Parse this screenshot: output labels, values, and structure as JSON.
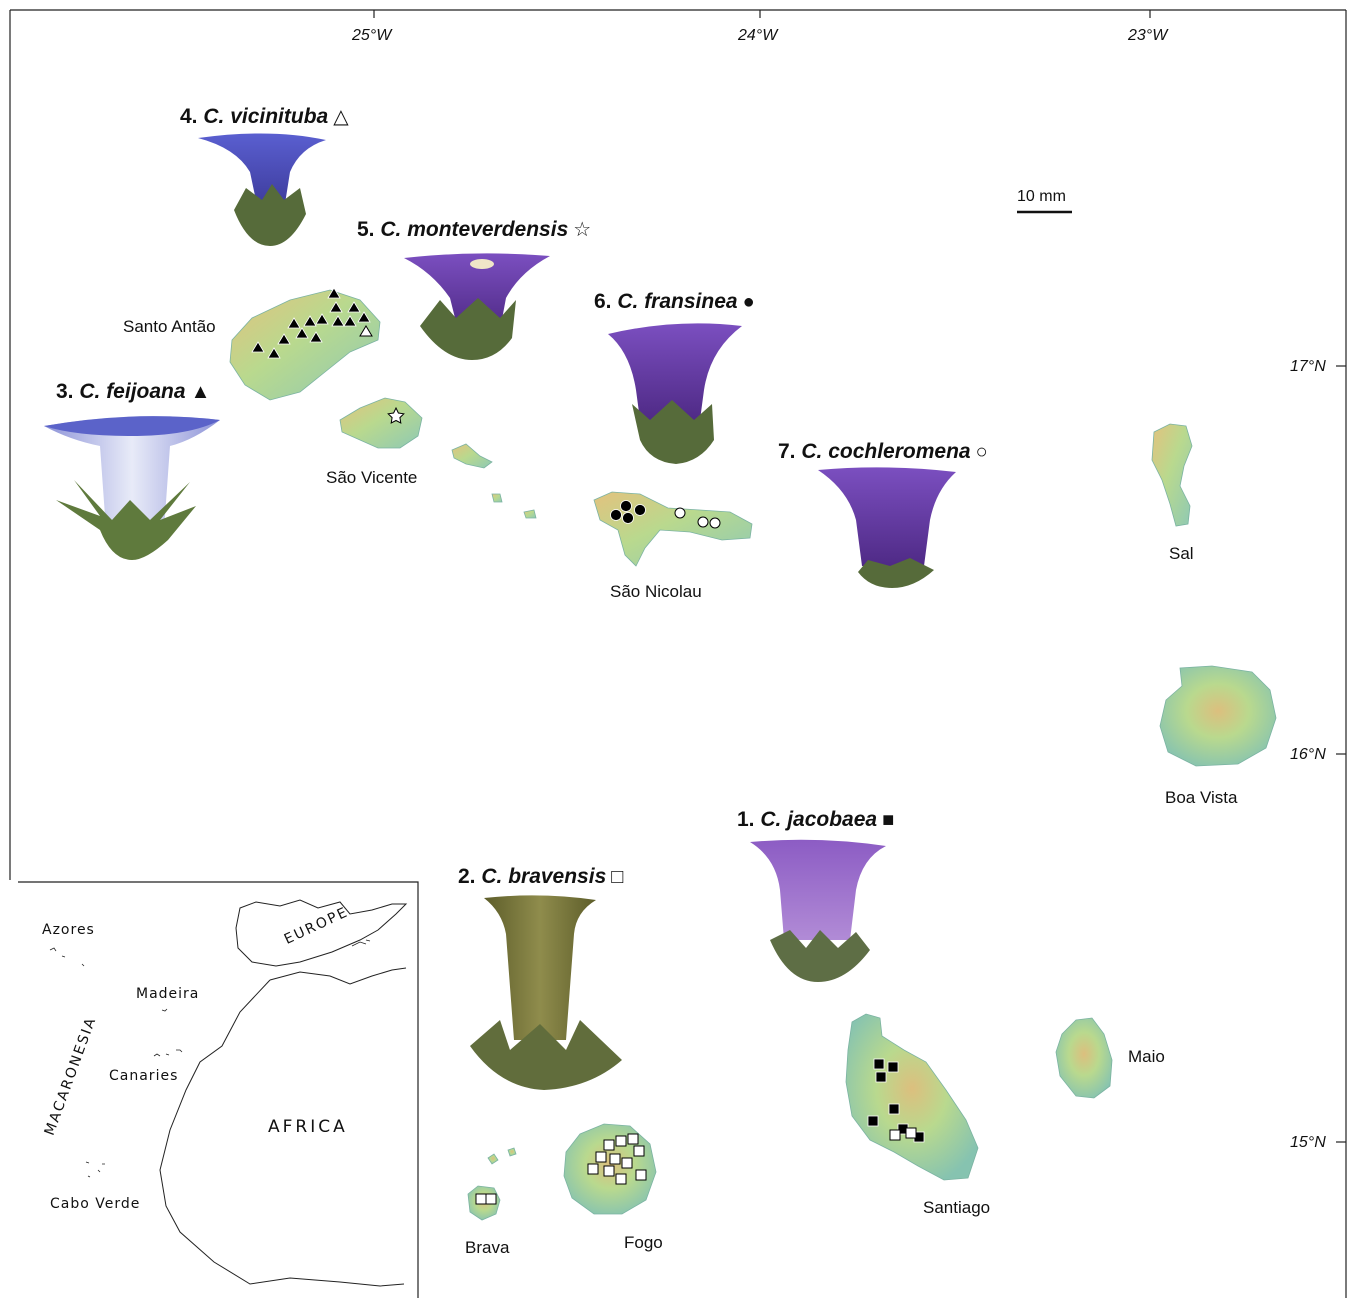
{
  "longitudes": [
    "25°W",
    "24°W",
    "23°W"
  ],
  "latitudes": [
    "17°N",
    "16°N",
    "15°N"
  ],
  "scale_bar": "10 mm",
  "islands": {
    "santo_antao": "Santo Antão",
    "sao_vicente": "São Vicente",
    "sao_nicolau": "São Nicolau",
    "sal": "Sal",
    "boa_vista": "Boa Vista",
    "maio": "Maio",
    "santiago": "Santiago",
    "fogo": "Fogo",
    "brava": "Brava"
  },
  "species": [
    {
      "num": "1.",
      "name": "C. jacobaea",
      "symbol": "■"
    },
    {
      "num": "2.",
      "name": "C. bravensis",
      "symbol": "□"
    },
    {
      "num": "3.",
      "name": "C. feijoana",
      "symbol": "▲"
    },
    {
      "num": "4.",
      "name": "C. vicinituba",
      "symbol": "△"
    },
    {
      "num": "5.",
      "name": "C. monteverdensis",
      "symbol": "☆"
    },
    {
      "num": "6.",
      "name": "C. fransinea",
      "symbol": "●"
    },
    {
      "num": "7.",
      "name": "C. cochleromena",
      "symbol": "○"
    }
  ],
  "inset": {
    "azores": "Azores",
    "madeira": "Madeira",
    "canaries": "Canaries",
    "cabo_verde": "Cabo Verde",
    "macaronesia": "MACARONESIA",
    "europe": "EUROPE",
    "africa": "AFRICA"
  },
  "colors": {
    "island_low": "#8ec9b4",
    "island_mid": "#b9d98e",
    "island_high": "#e3c27e",
    "flower_purple": "#6a3fa8",
    "flower_blue": "#5b63c9",
    "flower_green": "#7d7a3e",
    "sepal_green": "#566b3a"
  }
}
